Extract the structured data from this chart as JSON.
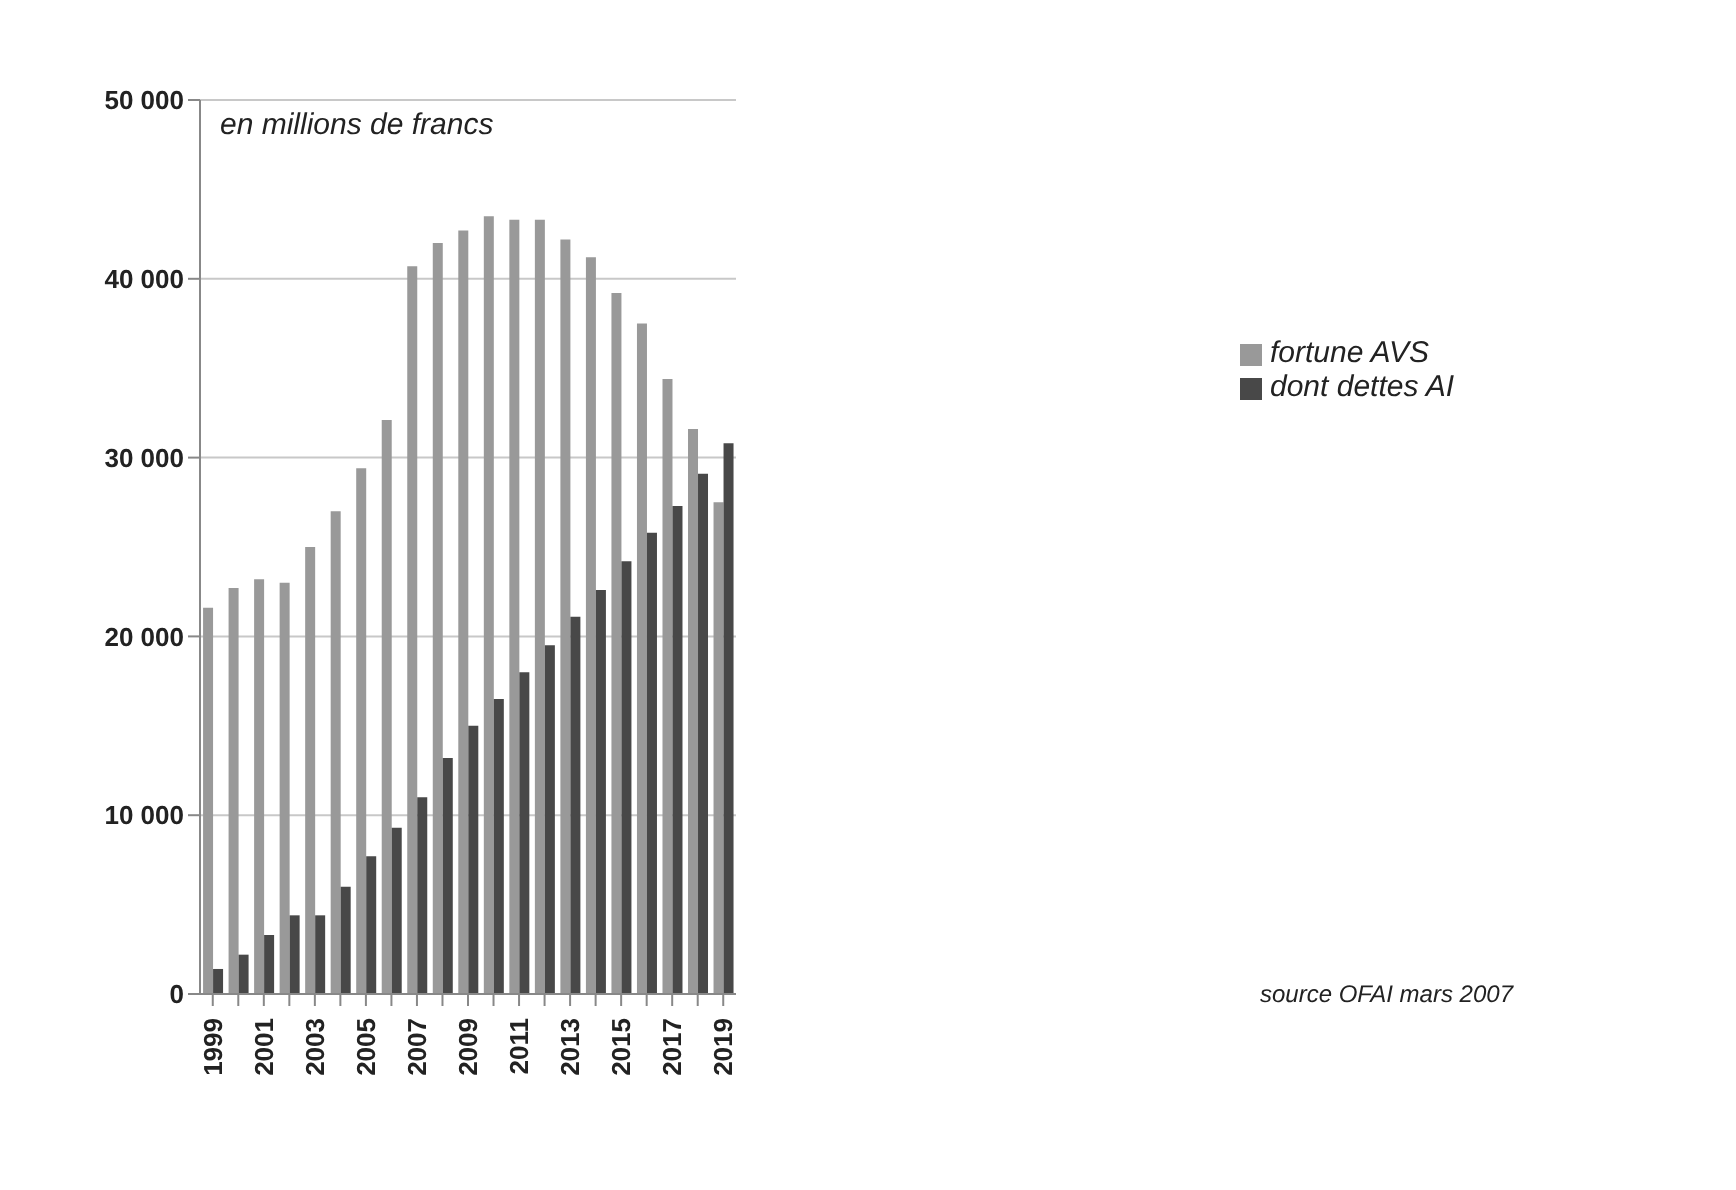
{
  "chart_data": {
    "type": "bar",
    "categories": [
      "1999",
      null,
      "2001",
      null,
      "2003",
      null,
      "2005",
      null,
      "2007",
      null,
      "2009",
      null,
      "2011",
      null,
      "2013",
      null,
      "2015",
      null,
      "2017",
      null,
      "2019"
    ],
    "series": [
      {
        "name": "fortune AVS",
        "color": "#999999",
        "values": [
          21600,
          22700,
          23200,
          23000,
          25000,
          27000,
          29400,
          32100,
          40700,
          42000,
          42700,
          43500,
          43300,
          43300,
          42200,
          41200,
          39200,
          37500,
          34400,
          31600,
          27500
        ]
      },
      {
        "name": "dont dettes AI",
        "color": "#484848",
        "values": [
          1400,
          2200,
          3300,
          4400,
          4400,
          6000,
          7700,
          9300,
          11000,
          13200,
          15000,
          16500,
          18000,
          19500,
          21100,
          22600,
          24200,
          25800,
          27300,
          29100,
          30800
        ]
      }
    ],
    "ylim": [
      0,
      50000
    ],
    "yticks": [
      {
        "value": 0,
        "label": "0"
      },
      {
        "value": 10000,
        "label": "10 000"
      },
      {
        "value": 20000,
        "label": "20 000"
      },
      {
        "value": 30000,
        "label": "30 000"
      },
      {
        "value": 40000,
        "label": "40 000"
      },
      {
        "value": 50000,
        "label": "50 000"
      }
    ],
    "grid": "y",
    "legend": "right",
    "annotations": [
      "en millions de francs",
      "source OFAI mars 2007"
    ]
  }
}
